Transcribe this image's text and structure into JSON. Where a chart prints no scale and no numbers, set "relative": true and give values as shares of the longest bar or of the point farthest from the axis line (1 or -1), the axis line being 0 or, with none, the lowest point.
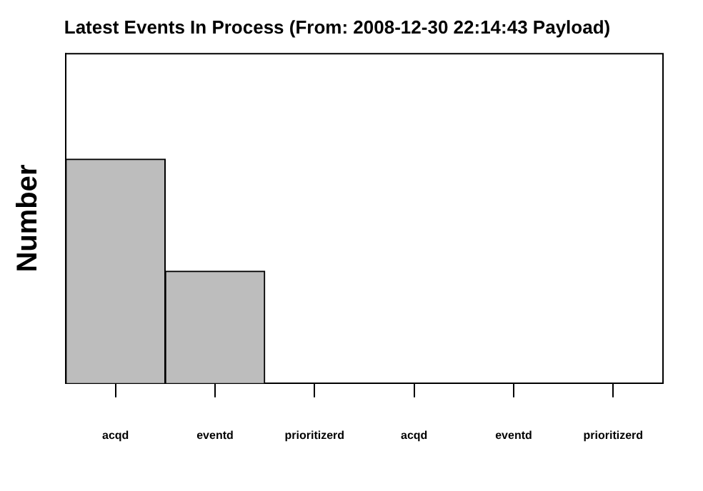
{
  "chart_data": {
    "type": "bar",
    "title": "Latest Events In Process (From: 2008-12-30 22:14:43 Payload)",
    "ylabel": "Number",
    "relative": true,
    "categories": [
      "acqd",
      "eventd",
      "prioritizerd",
      "acqd",
      "eventd",
      "prioritizerd"
    ],
    "series": [
      {
        "color": "#bdbdbd",
        "values": [
          1,
          0.5,
          0,
          0,
          0,
          0
        ]
      }
    ],
    "grid": false,
    "legend": false
  }
}
